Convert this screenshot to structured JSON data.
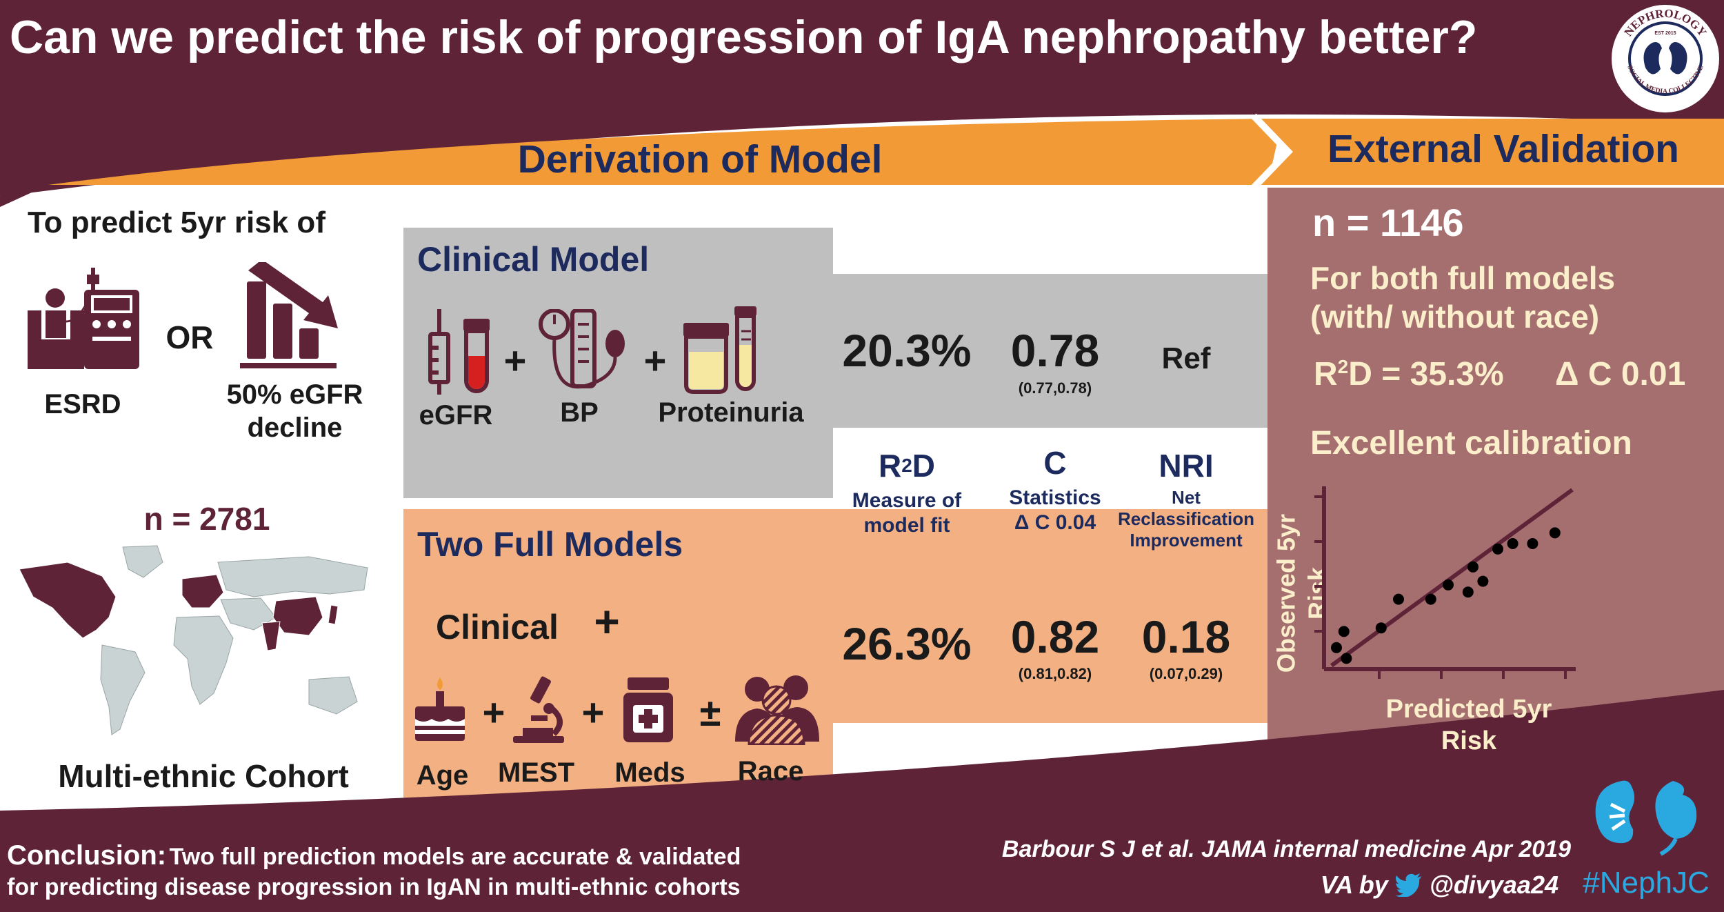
{
  "header": {
    "title": "Can we predict the risk of progression of IgA nephropathy better?",
    "logo": {
      "icon": "nephrology-social-media-collective-seal",
      "lettering": [
        "NEPHROLOGY",
        "SOCIAL MEDIA COLLECTIVE",
        "EST 2015"
      ]
    }
  },
  "banners": {
    "derivation": "Derivation of Model",
    "validation": "External Validation"
  },
  "outcome": {
    "heading": "To predict 5yr risk of",
    "esrd_label": "ESRD",
    "esrd_icon": "dialysis-icon",
    "or": "OR",
    "egfr_label_line1": "50% eGFR",
    "egfr_label_line2": "decline",
    "egfr_icon": "declining-bar-chart-icon"
  },
  "cohort": {
    "n": "n = 2781",
    "label": "Multi-ethnic Cohort",
    "map_icon": "world-map-icon"
  },
  "clinical_model": {
    "title": "Clinical Model",
    "items": [
      {
        "label": "eGFR",
        "icon": "blood-tubes-icon"
      },
      {
        "label": "BP",
        "icon": "blood-pressure-cuff-icon"
      },
      {
        "label": "Proteinuria",
        "icon": "urine-sample-icon"
      }
    ],
    "plus": "+",
    "r2d": "20.3%",
    "c_stat": "0.78",
    "c_ci": "(0.77,0.78)",
    "nri": "Ref"
  },
  "metrics_header": {
    "r2d": {
      "title_prefix": "R",
      "title_sup": "2",
      "title_suffix": "D",
      "sub_line1": "Measure of",
      "sub_line2": "model fit"
    },
    "c": {
      "title": "C",
      "sub_line1": "Statistics",
      "sub_line2": "Δ C 0.04"
    },
    "nri": {
      "title": "NRI",
      "sub_line1": "Net",
      "sub_line2": "Reclassification",
      "sub_line3": "Improvement"
    }
  },
  "full_models": {
    "title": "Two Full Models",
    "clinical": "Clinical",
    "plus": "+",
    "plus_minus": "±",
    "items": [
      {
        "label": "Age",
        "icon": "birthday-cake-icon"
      },
      {
        "label": "MEST",
        "icon": "microscope-icon"
      },
      {
        "label": "Meds",
        "icon": "medicine-bottle-icon"
      },
      {
        "label": "Race",
        "icon": "people-group-icon"
      }
    ],
    "r2d": "26.3%",
    "c_stat": "0.82",
    "c_ci": "(0.81,0.82)",
    "nri": "0.18",
    "nri_ci": "(0.07,0.29)"
  },
  "validation": {
    "n": "n = 1146",
    "both_line1": "For both full models",
    "both_line2": "(with/ without race)",
    "r2d_prefix": "R",
    "r2d_sup": "2",
    "r2d_suffix": "D = 35.3%",
    "delta_c": "Δ C 0.01",
    "calibration": "Excellent calibration",
    "ylabel_line1": "Observed 5yr",
    "ylabel_line2": "Risk",
    "xlabel_line1": "Predicted 5yr",
    "xlabel_line2": "Risk"
  },
  "chart_data": {
    "type": "scatter",
    "title": "",
    "xlabel": "Predicted 5yr Risk",
    "ylabel": "Observed 5yr Risk",
    "xlim": [
      0,
      10
    ],
    "ylim": [
      0,
      10
    ],
    "x_ticks": 4,
    "y_ticks": 4,
    "has_tick_labels": false,
    "series": [
      {
        "points": [
          [
            0.5,
            1.2
          ],
          [
            0.9,
            0.6
          ],
          [
            0.8,
            2.1
          ],
          [
            2.3,
            2.3
          ],
          [
            3.0,
            3.9
          ],
          [
            4.3,
            3.9
          ],
          [
            5.0,
            4.7
          ],
          [
            5.8,
            4.3
          ],
          [
            6.4,
            4.9
          ],
          [
            6.0,
            5.7
          ],
          [
            7.0,
            6.7
          ],
          [
            7.6,
            7.0
          ],
          [
            8.4,
            7.0
          ],
          [
            9.3,
            7.6
          ]
        ]
      }
    ],
    "reference_line": {
      "from": [
        0.3,
        0.2
      ],
      "to": [
        10.0,
        10.0
      ]
    },
    "colors": {
      "axes": "#5f2338",
      "points": "#000000",
      "line": "#5f2338"
    }
  },
  "footer": {
    "conclusion_label": "Conclusion:",
    "conclusion_line1": "Two full prediction models are accurate & validated",
    "conclusion_line2": "for predicting disease progression in IgAN in multi-ethnic cohorts",
    "citation": "Barbour S J et al.  JAMA internal medicine Apr 2019",
    "byline_prefix": "VA by",
    "twitter_icon": "twitter-bird-icon",
    "handle": "@divyaa24",
    "hashtag": "#NephJC",
    "kidney_logo": "nephjc-kidney-logo"
  },
  "colors": {
    "maroon": "#5f2338",
    "orange": "#f29a36",
    "navy": "#1c2a5e",
    "gray_panel": "#bfbfbf",
    "peach_panel": "#f2b083",
    "validation_panel": "#a56e6f",
    "cream_text": "#fbeecb",
    "blood_red": "#d62020",
    "nephjc_blue": "#2aa8e0"
  }
}
